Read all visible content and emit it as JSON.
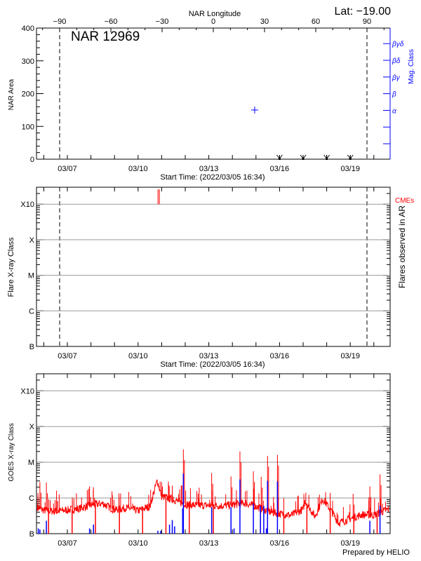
{
  "colors": {
    "axis": "#000000",
    "grid": "#999999",
    "goes": "#ff0000",
    "flare": "#0000ff",
    "mag": "#0000ff",
    "cme": "#ff0000"
  },
  "time_axis": {
    "start": "2022-03-05T16:34",
    "end": "2022-03-20T16:34",
    "label": "Start Time: (2022/03/05 16:34)",
    "ticks": [
      {
        "time": "2022-03-07T00:00",
        "label": "03/07"
      },
      {
        "time": "2022-03-10T00:00",
        "label": "03/10"
      },
      {
        "time": "2022-03-13T00:00",
        "label": "03/13"
      },
      {
        "time": "2022-03-16T00:00",
        "label": "03/16"
      },
      {
        "time": "2022-03-19T00:00",
        "label": "03/19"
      }
    ]
  },
  "footer": "Prepared by HELIO",
  "chart_data": [
    {
      "type": "scatter",
      "title": "NAR 12969",
      "lat_label": "Lat: −19.00",
      "ylabel": "NAR Area",
      "ylim": [
        0,
        400
      ],
      "yticks": [
        "0",
        "100",
        "200",
        "300",
        "400"
      ],
      "top_axis": {
        "label": "NAR Longitude",
        "ticks": [
          "−90",
          "−60",
          "−30",
          "0",
          "30",
          "60",
          "90"
        ],
        "tick_values": [
          -90,
          -60,
          -30,
          0,
          30,
          60,
          90
        ]
      },
      "limb_longitudes": [
        -90,
        90
      ],
      "right_axis": {
        "label": "Mag. Class",
        "classes": [
          "",
          "",
          "α",
          "β",
          "βγ",
          "βδ",
          "βγδ"
        ]
      },
      "points": [
        {
          "time": "2022-03-14T22:40",
          "area": 150,
          "mag_class": "α"
        }
      ],
      "markers": [
        "2022-03-16T00:00",
        "2022-03-17T00:00",
        "2022-03-18T00:00",
        "2022-03-19T00:00"
      ]
    },
    {
      "type": "bar",
      "ylabel": "Flare X-ray Class",
      "right_label": "Flares observed in AR",
      "legend": "CMEs",
      "yscale": "log",
      "ylim": [
        1e-07,
        0.003
      ],
      "yticks": [
        {
          "v": 1e-07,
          "label": "B"
        },
        {
          "v": 1e-06,
          "label": "C"
        },
        {
          "v": 1e-05,
          "label": "M"
        },
        {
          "v": 0.0001,
          "label": "X"
        },
        {
          "v": 0.001,
          "label": "X10"
        }
      ],
      "grid": true,
      "flares": [],
      "cmes": [
        "2022-03-10T20:15",
        "2022-03-10T21:40"
      ]
    },
    {
      "type": "line",
      "ylabel": "GOES X-ray Class",
      "yscale": "log",
      "ylim": [
        1e-07,
        0.003
      ],
      "yticks": [
        {
          "v": 1e-07,
          "label": "B"
        },
        {
          "v": 1e-06,
          "label": "C"
        },
        {
          "v": 1e-05,
          "label": "M"
        },
        {
          "v": 0.0001,
          "label": "X"
        },
        {
          "v": 0.001,
          "label": "X10"
        }
      ],
      "grid": true,
      "baseline": [
        [
          "2022-03-05T16:34",
          5.6e-07
        ],
        [
          "2022-03-06T00:00",
          4.5e-07
        ],
        [
          "2022-03-06T12:00",
          4.2e-07
        ],
        [
          "2022-03-07T00:00",
          4.6e-07
        ],
        [
          "2022-03-07T12:00",
          5e-07
        ],
        [
          "2022-03-08T00:00",
          6.4e-07
        ],
        [
          "2022-03-08T12:00",
          7e-07
        ],
        [
          "2022-03-09T00:00",
          4.6e-07
        ],
        [
          "2022-03-09T12:00",
          5.3e-07
        ],
        [
          "2022-03-10T00:00",
          4.4e-07
        ],
        [
          "2022-03-10T12:00",
          5.8e-07
        ],
        [
          "2022-03-10T19:30",
          3.1e-06
        ],
        [
          "2022-03-11T00:00",
          1.1e-06
        ],
        [
          "2022-03-11T12:00",
          9e-07
        ],
        [
          "2022-03-12T00:00",
          6.6e-07
        ],
        [
          "2022-03-12T12:00",
          6.2e-07
        ],
        [
          "2022-03-13T00:00",
          6.2e-07
        ],
        [
          "2022-03-13T12:00",
          6e-07
        ],
        [
          "2022-03-14T00:00",
          6.4e-07
        ],
        [
          "2022-03-14T12:00",
          7.2e-07
        ],
        [
          "2022-03-15T00:00",
          5.8e-07
        ],
        [
          "2022-03-15T12:00",
          4.2e-07
        ],
        [
          "2022-03-16T00:00",
          3.6e-07
        ],
        [
          "2022-03-16T12:00",
          3.3e-07
        ],
        [
          "2022-03-17T00:00",
          4.8e-07
        ],
        [
          "2022-03-17T02:00",
          8.5e-07
        ],
        [
          "2022-03-17T12:00",
          3e-07
        ],
        [
          "2022-03-17T20:00",
          9.5e-07
        ],
        [
          "2022-03-18T06:00",
          3.8e-07
        ],
        [
          "2022-03-18T12:00",
          2e-07
        ],
        [
          "2022-03-19T00:00",
          2.6e-07
        ],
        [
          "2022-03-19T12:00",
          3.4e-07
        ],
        [
          "2022-03-20T00:00",
          3.3e-07
        ],
        [
          "2022-03-20T12:00",
          4.5e-07
        ],
        [
          "2022-03-20T16:34",
          5e-07
        ]
      ],
      "spikes": [
        [
          "2022-03-05T20:03",
          2.8e-06
        ],
        [
          "2022-03-06T02:39",
          2.7e-06
        ],
        [
          "2022-03-06T12:58",
          1.6e-06
        ],
        [
          "2022-03-07T22:34",
          2.1e-06
        ],
        [
          "2022-03-08T02:34",
          2e-06
        ],
        [
          "2022-03-08T21:52",
          1.2e-06
        ],
        [
          "2022-03-11T07:10",
          2.3e-06
        ],
        [
          "2022-03-11T10:48",
          2.2e-06
        ],
        [
          "2022-03-11T22:05",
          2.3e-05
        ],
        [
          "2022-03-13T02:53",
          5e-06
        ],
        [
          "2022-03-13T22:34",
          4e-06
        ],
        [
          "2022-03-14T07:40",
          2e-05
        ],
        [
          "2022-03-14T21:22",
          5.6e-06
        ],
        [
          "2022-03-15T05:17",
          3.9e-06
        ],
        [
          "2022-03-15T11:46",
          1.5e-05
        ],
        [
          "2022-03-15T21:51",
          1.6e-05
        ],
        [
          "2022-03-17T00:46",
          1.3e-06
        ],
        [
          "2022-03-19T02:53",
          1.3e-06
        ],
        [
          "2022-03-19T19:56",
          2.1e-06
        ],
        [
          "2022-03-20T06:16",
          4.6e-06
        ]
      ],
      "dropouts": [
        "2022-03-06T04:50",
        "2022-03-07T04:50",
        "2022-03-08T04:34",
        "2022-03-09T05:00",
        "2022-03-10T04:34",
        "2022-03-11T04:20",
        "2022-03-12T04:05",
        "2022-03-13T04:34",
        "2022-03-15T04:34",
        "2022-03-16T04:20",
        "2022-03-17T03:50",
        "2022-03-18T03:35",
        "2022-03-19T03:35",
        "2022-03-20T03:20"
      ],
      "flare_bars": [
        [
          "2022-03-05T18:25",
          1.4e-07
        ],
        [
          "2022-03-05T20:03",
          1.3e-07
        ],
        [
          "2022-03-06T02:39",
          2.3e-07
        ],
        [
          "2022-03-07T22:34",
          1.4e-07
        ],
        [
          "2022-03-08T02:34",
          1.8e-07
        ],
        [
          "2022-03-10T20:10",
          1.2e-07
        ],
        [
          "2022-03-10T23:00",
          1.2e-07
        ],
        [
          "2022-03-11T08:00",
          1.8e-07
        ],
        [
          "2022-03-11T10:48",
          2.4e-07
        ],
        [
          "2022-03-11T13:12",
          1.6e-07
        ],
        [
          "2022-03-11T21:22",
          5.1e-07
        ],
        [
          "2022-03-11T22:05",
          4.8e-06
        ],
        [
          "2022-03-13T02:53",
          5.5e-07
        ],
        [
          "2022-03-13T22:34",
          5.5e-07
        ],
        [
          "2022-03-14T01:41",
          1.4e-07
        ],
        [
          "2022-03-14T07:40",
          3.3e-06
        ],
        [
          "2022-03-14T21:22",
          7e-07
        ],
        [
          "2022-03-15T04:34",
          6e-07
        ],
        [
          "2022-03-15T07:55",
          6e-07
        ],
        [
          "2022-03-15T10:34",
          1.4e-07
        ],
        [
          "2022-03-15T11:46",
          3e-06
        ],
        [
          "2022-03-15T21:51",
          2.9e-06
        ],
        [
          "2022-03-19T19:56",
          2.3e-07
        ],
        [
          "2022-03-20T06:16",
          6e-07
        ]
      ]
    }
  ]
}
